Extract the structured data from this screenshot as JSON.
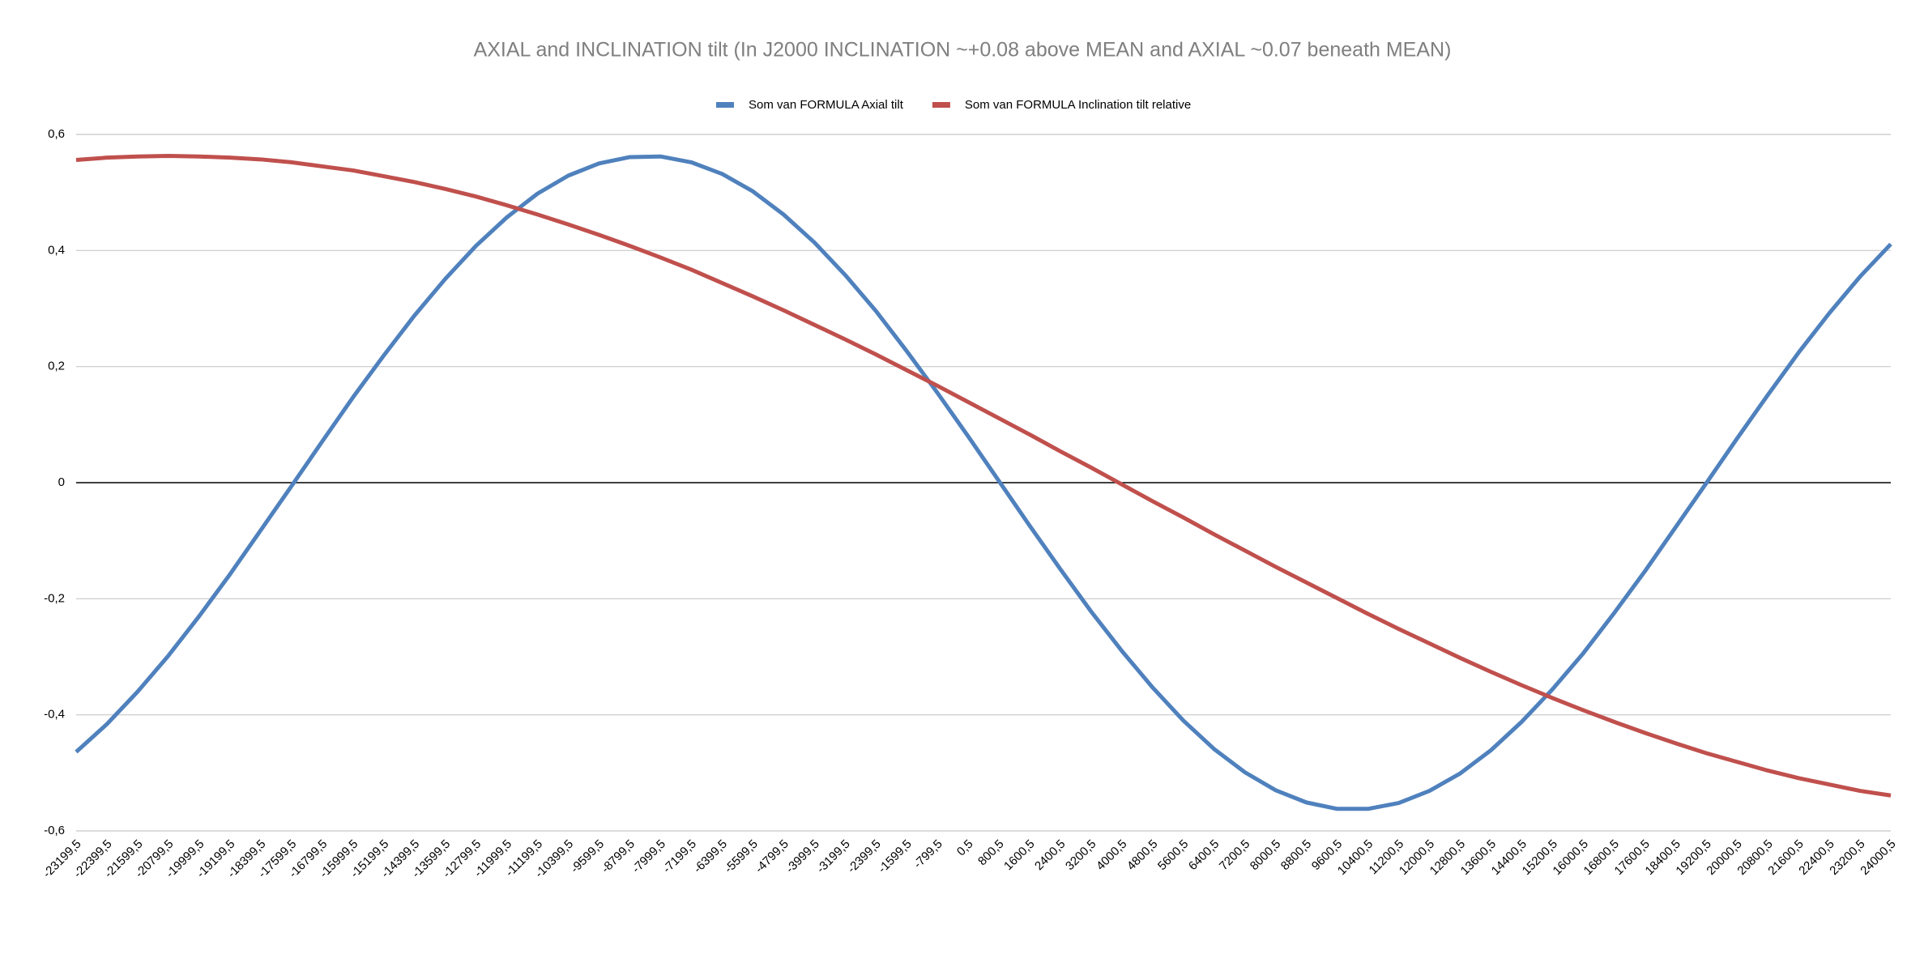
{
  "chart_data": {
    "type": "line",
    "title": "AXIAL and INCLINATION tilt (In J2000 INCLINATION ~+0.08 above MEAN and AXIAL ~0.07 beneath MEAN)",
    "categories": [
      "-23199,5",
      "-22399,5",
      "-21599,5",
      "-20799,5",
      "-19999,5",
      "-19199,5",
      "-18399,5",
      "-17599,5",
      "-16799,5",
      "-15999,5",
      "-15199,5",
      "-14399,5",
      "-13599,5",
      "-12799,5",
      "-11999,5",
      "-11199,5",
      "-10399,5",
      "-9599,5",
      "-8799,5",
      "-7999,5",
      "-7199,5",
      "-6399,5",
      "-5599,5",
      "-4799,5",
      "-3999,5",
      "-3199,5",
      "-2399,5",
      "-1599,5",
      "-799,5",
      "0,5",
      "800,5",
      "1600,5",
      "2400,5",
      "3200,5",
      "4000,5",
      "4800,5",
      "5600,5",
      "6400,5",
      "7200,5",
      "8000,5",
      "8800,5",
      "9600,5",
      "10400,5",
      "11200,5",
      "12000,5",
      "12800,5",
      "13600,5",
      "14400,5",
      "15200,5",
      "16000,5",
      "16800,5",
      "17600,5",
      "18400,5",
      "19200,5",
      "20000,5",
      "20800,5",
      "21600,5",
      "22400,5",
      "23200,5",
      "24000,5"
    ],
    "series": [
      {
        "name": "Som van FORMULA Axial tilt",
        "color": "#4f81bd",
        "values": [
          -0.464,
          -0.416,
          -0.36,
          -0.298,
          -0.23,
          -0.158,
          -0.082,
          -0.006,
          0.071,
          0.147,
          0.219,
          0.288,
          0.351,
          0.408,
          0.457,
          0.498,
          0.529,
          0.55,
          0.561,
          0.562,
          0.552,
          0.532,
          0.502,
          0.462,
          0.414,
          0.358,
          0.296,
          0.227,
          0.155,
          0.08,
          0.003,
          -0.074,
          -0.149,
          -0.222,
          -0.29,
          -0.353,
          -0.41,
          -0.459,
          -0.499,
          -0.53,
          -0.551,
          -0.562,
          -0.562,
          -0.552,
          -0.531,
          -0.501,
          -0.461,
          -0.412,
          -0.356,
          -0.294,
          -0.225,
          -0.153,
          -0.077,
          -0.001,
          0.076,
          0.151,
          0.224,
          0.292,
          0.355,
          0.411
        ]
      },
      {
        "name": "Som van FORMULA Inclination tilt relative",
        "color": "#c0504d",
        "values": [
          0.556,
          0.56,
          0.562,
          0.563,
          0.562,
          0.56,
          0.557,
          0.552,
          0.545,
          0.538,
          0.528,
          0.518,
          0.506,
          0.493,
          0.478,
          0.462,
          0.445,
          0.427,
          0.408,
          0.388,
          0.367,
          0.344,
          0.321,
          0.297,
          0.272,
          0.247,
          0.221,
          0.194,
          0.167,
          0.139,
          0.111,
          0.083,
          0.054,
          0.026,
          -0.003,
          -0.032,
          -0.06,
          -0.089,
          -0.117,
          -0.145,
          -0.172,
          -0.199,
          -0.226,
          -0.252,
          -0.277,
          -0.302,
          -0.326,
          -0.349,
          -0.371,
          -0.392,
          -0.412,
          -0.431,
          -0.449,
          -0.466,
          -0.481,
          -0.496,
          -0.509,
          -0.52,
          -0.531,
          -0.539
        ]
      }
    ],
    "ylim": [
      -0.6,
      0.6
    ],
    "yticks": [
      {
        "value": -0.6,
        "label": "-0,6"
      },
      {
        "value": -0.4,
        "label": "-0,4"
      },
      {
        "value": -0.2,
        "label": "-0,2"
      },
      0,
      {
        "value": 0.2,
        "label": "0,2"
      },
      {
        "value": 0.4,
        "label": "0,4"
      },
      {
        "value": 0.6,
        "label": "0,6"
      }
    ],
    "grid": true,
    "legend": "top"
  }
}
